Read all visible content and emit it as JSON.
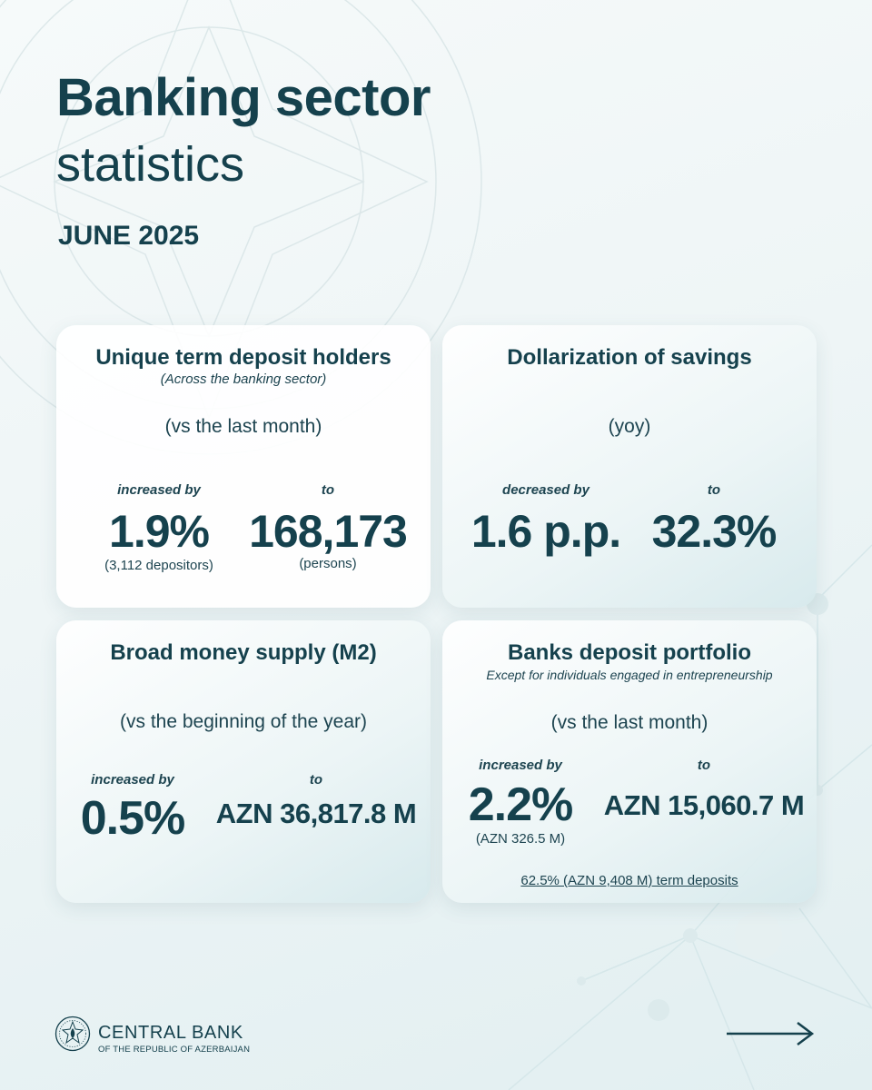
{
  "header": {
    "title": "Banking sector",
    "subtitle": "statistics",
    "period": "JUNE 2025"
  },
  "cards": {
    "deposit_holders": {
      "title": "Unique term deposit holders",
      "note": "(Across the banking sector)",
      "comparison": "(vs the last month)",
      "change_label": "increased by",
      "change_value": "1.9%",
      "change_detail": "(3,112 depositors)",
      "target_label": "to",
      "target_value": "168,173",
      "target_detail": "(persons)"
    },
    "dollarization": {
      "title": "Dollarization of savings",
      "comparison": "(yoy)",
      "change_label": "decreased by",
      "change_value": "1.6 p.p.",
      "target_label": "to",
      "target_value": "32.3%"
    },
    "money_supply": {
      "title": "Broad money supply (M2)",
      "comparison": "(vs the beginning of the year)",
      "change_label": "increased by",
      "change_value": "0.5%",
      "target_label": "to",
      "target_value": "AZN 36,817.8 M"
    },
    "deposit_portfolio": {
      "title": "Banks deposit portfolio",
      "note": "Except for individuals engaged in entrepreneurship",
      "comparison": "(vs the last month)",
      "change_label": "increased by",
      "change_value": "2.2%",
      "change_detail": "(AZN 326.5 M)",
      "target_label": "to",
      "target_value": "AZN 15,060.7 M",
      "footnote": "62.5% (AZN 9,408 M) term deposits"
    }
  },
  "footer": {
    "bank_name": "CENTRAL BANK",
    "bank_sub": "OF THE REPUBLIC OF AZERBAIJAN",
    "logo_icon": "central-bank-emblem-icon",
    "next_icon": "arrow-right-icon"
  },
  "colors": {
    "primary_text": "#15414d",
    "background": "#eef5f6"
  }
}
